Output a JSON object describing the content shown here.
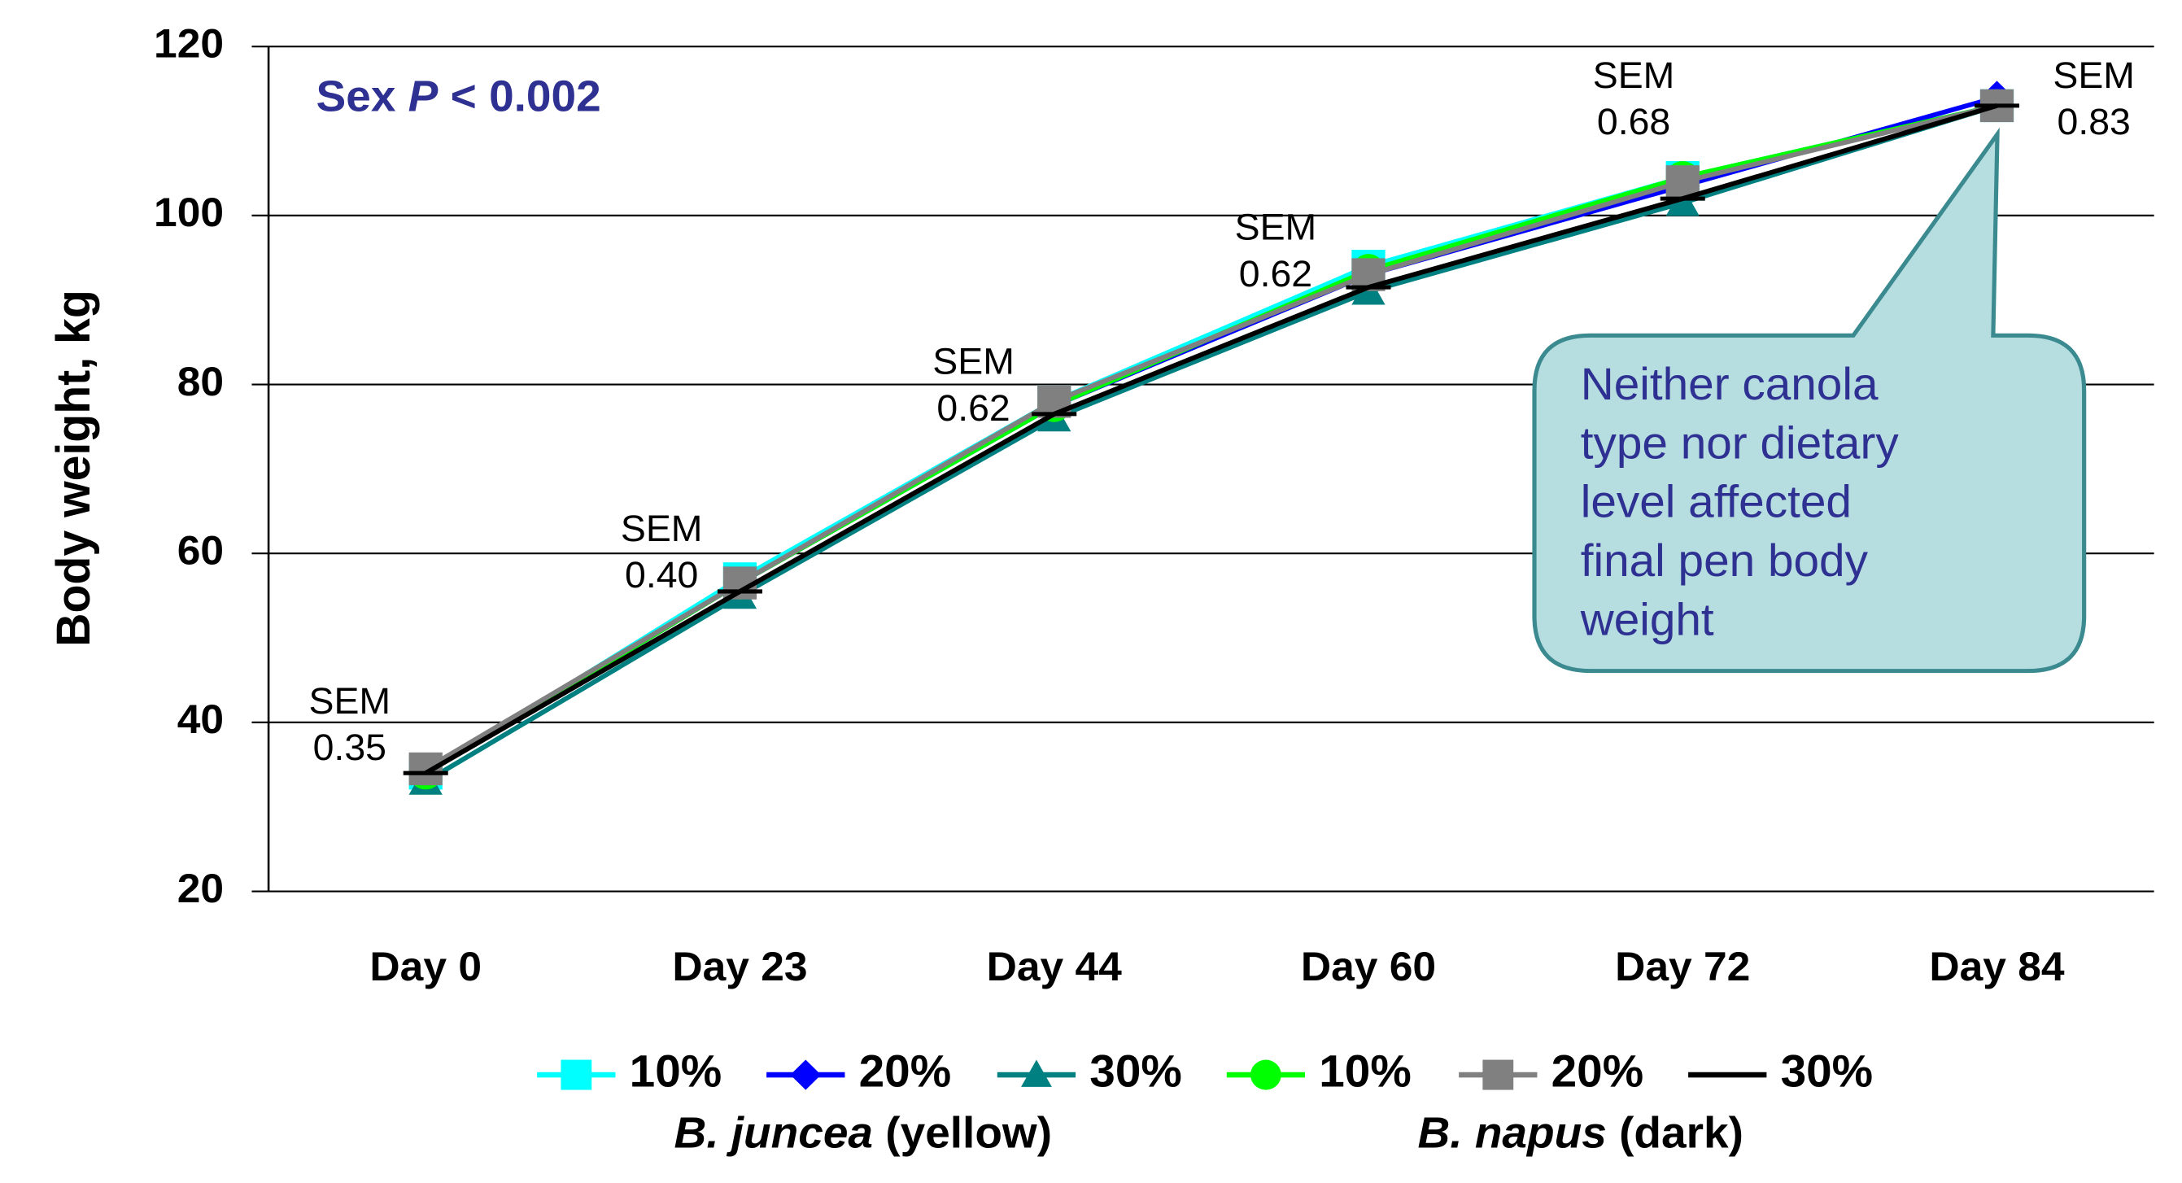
{
  "chart_data": {
    "type": "line",
    "ylabel": "Body weight, kg",
    "categories": [
      "Day 0",
      "Day 23",
      "Day 44",
      "Day 60",
      "Day 72",
      "Day 84"
    ],
    "ylim": [
      20,
      120
    ],
    "yticks": [
      20,
      40,
      60,
      80,
      100,
      120
    ],
    "grid": true,
    "series": [
      {
        "name": "10%",
        "color": "#00ffff",
        "marker": "square",
        "values": [
          34,
          57,
          78,
          94,
          104.5,
          113
        ]
      },
      {
        "name": "20%",
        "color": "#0000ff",
        "marker": "diamond",
        "values": [
          34,
          56.5,
          77.5,
          93,
          103.5,
          114
        ]
      },
      {
        "name": "30%",
        "color": "#008080",
        "marker": "triangle",
        "values": [
          33,
          55,
          76,
          91,
          101.5,
          113
        ]
      },
      {
        "name": "10%",
        "color": "#00ff00",
        "marker": "circle",
        "values": [
          34,
          56.5,
          77.5,
          93.5,
          104.5,
          113
        ]
      },
      {
        "name": "20%",
        "color": "#808080",
        "marker": "square",
        "values": [
          34.5,
          56.5,
          78,
          93,
          104,
          113
        ]
      },
      {
        "name": "30%",
        "color": "#000000",
        "marker": "none",
        "values": [
          34,
          55.5,
          76.5,
          91.5,
          102,
          113
        ]
      }
    ],
    "legend_groups": [
      {
        "italic": "B. juncea",
        "rest": " (yellow)"
      },
      {
        "italic": "B. napus",
        "rest": " (dark)"
      }
    ],
    "sex_note": {
      "prefix": "Sex ",
      "italic": "P",
      "suffix": " < 0.002"
    },
    "sem_labels": [
      {
        "label": "SEM",
        "value": "0.35"
      },
      {
        "label": "SEM",
        "value": "0.40"
      },
      {
        "label": "SEM",
        "value": "0.62"
      },
      {
        "label": "SEM",
        "value": "0.62"
      },
      {
        "label": "SEM",
        "value": "0.68"
      },
      {
        "label": "SEM",
        "value": "0.83"
      }
    ],
    "callout": [
      "Neither canola",
      "type nor dietary",
      "level affected",
      "final pen body",
      "weight"
    ]
  }
}
